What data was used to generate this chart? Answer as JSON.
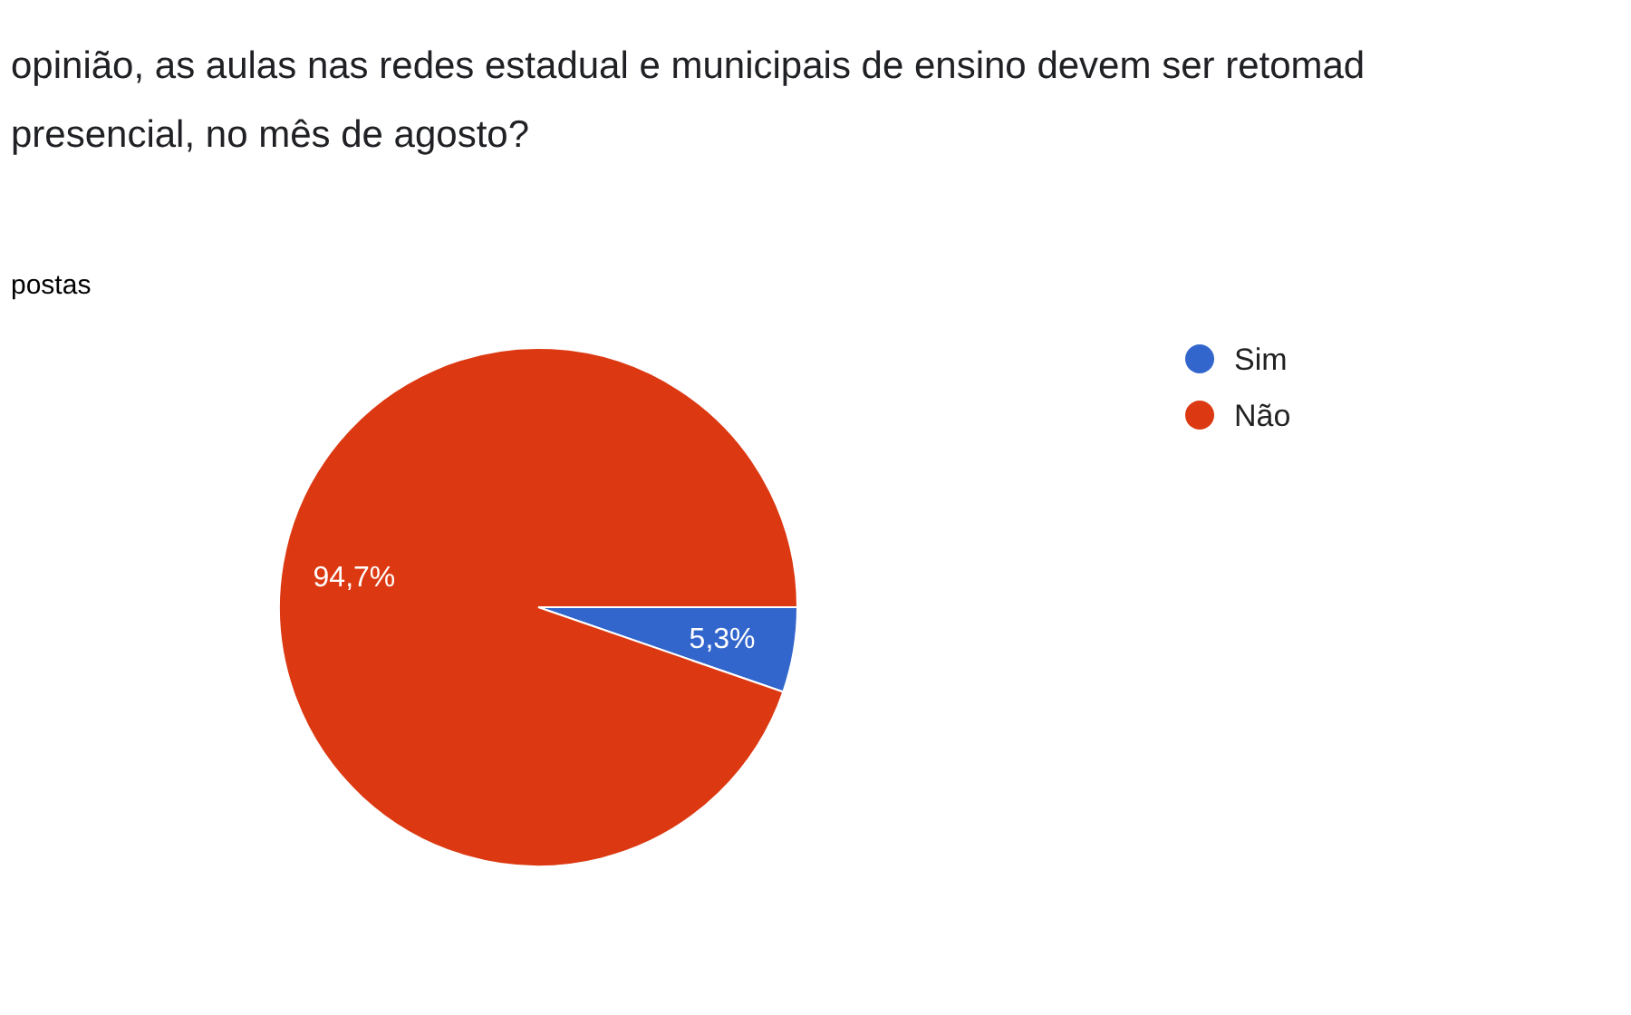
{
  "chart_data": {
    "type": "pie",
    "title": "opinião, as aulas nas redes estadual e municipais de ensino devem ser retomad\npresencial, no mês de agosto?",
    "subtitle": "postas",
    "categories": [
      "Sim",
      "Não"
    ],
    "values": [
      5.3,
      94.7
    ],
    "colors": [
      "#3366cc",
      "#dc3912"
    ],
    "value_labels": [
      "5,3%",
      "94,7%"
    ],
    "legend": "top right"
  }
}
